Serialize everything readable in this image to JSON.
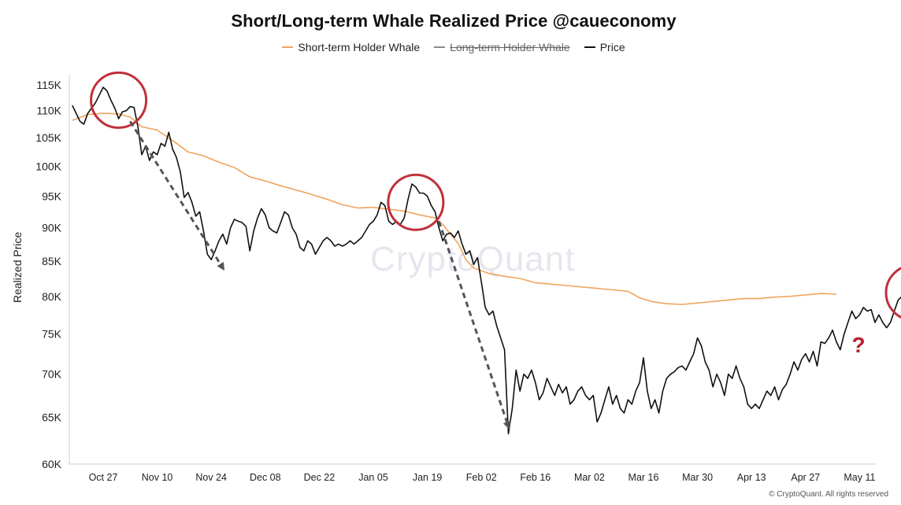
{
  "title": "Short/Long-term Whale Realized Price @caueconomy",
  "legend": [
    {
      "label": "Short-term Holder Whale",
      "color": "#f0a45c",
      "struck": false
    },
    {
      "label": "Long-term Holder Whale",
      "color": "#8a8a8a",
      "struck": true
    },
    {
      "label": "Price",
      "color": "#111111",
      "struck": false
    }
  ],
  "watermark": "CryptoQuant",
  "footer": "© CryptoQuant. All rights reserved",
  "annotation_mark": "?",
  "colors": {
    "price": "#111111",
    "sth_whale": "#f0a45c",
    "circle": "#c0303a",
    "arrow": "#555555"
  },
  "chart_data": {
    "type": "line",
    "ylabel": "Realized Price",
    "y_scale": "log",
    "ylim": [
      60000,
      117000
    ],
    "y_ticks": [
      {
        "value": 115000,
        "label": "115K"
      },
      {
        "value": 110000,
        "label": "110K"
      },
      {
        "value": 105000,
        "label": "105K"
      },
      {
        "value": 100000,
        "label": "100K"
      },
      {
        "value": 95000,
        "label": "95K"
      },
      {
        "value": 90000,
        "label": "90K"
      },
      {
        "value": 85000,
        "label": "85K"
      },
      {
        "value": 80000,
        "label": "80K"
      },
      {
        "value": 75000,
        "label": "75K"
      },
      {
        "value": 70000,
        "label": "70K"
      },
      {
        "value": 65000,
        "label": "65K"
      },
      {
        "value": 60000,
        "label": "60K"
      }
    ],
    "x_ticks": [
      "Oct 27",
      "Nov 10",
      "Nov 24",
      "Dec 08",
      "Dec 22",
      "Jan 05",
      "Jan 19",
      "Feb 02",
      "Feb 16",
      "Mar 02",
      "Mar 16",
      "Mar 30",
      "Apr 13",
      "Apr 27",
      "May 11"
    ],
    "grid": false,
    "legend_position": "top-center",
    "series": [
      {
        "name": "Short-term Holder Whale",
        "points": [
          [
            -8,
            108200
          ],
          [
            -4,
            109300
          ],
          [
            0,
            109500
          ],
          [
            4,
            109400
          ],
          [
            7,
            108800
          ],
          [
            10,
            107000
          ],
          [
            14,
            106400
          ],
          [
            18,
            104500
          ],
          [
            22,
            102500
          ],
          [
            26,
            101800
          ],
          [
            30,
            100700
          ],
          [
            34,
            99800
          ],
          [
            38,
            98200
          ],
          [
            42,
            97500
          ],
          [
            46,
            96700
          ],
          [
            50,
            96000
          ],
          [
            54,
            95300
          ],
          [
            58,
            94500
          ],
          [
            62,
            93600
          ],
          [
            66,
            93100
          ],
          [
            70,
            93200
          ],
          [
            74,
            92900
          ],
          [
            78,
            92600
          ],
          [
            82,
            92000
          ],
          [
            86,
            91500
          ],
          [
            88,
            90500
          ],
          [
            90,
            89000
          ],
          [
            92,
            87600
          ],
          [
            94,
            85200
          ],
          [
            96,
            84000
          ],
          [
            100,
            83200
          ],
          [
            104,
            82800
          ],
          [
            108,
            82500
          ],
          [
            112,
            81900
          ],
          [
            116,
            81700
          ],
          [
            120,
            81500
          ],
          [
            126,
            81200
          ],
          [
            132,
            80900
          ],
          [
            136,
            80700
          ],
          [
            139,
            79800
          ],
          [
            142,
            79300
          ],
          [
            146,
            79000
          ],
          [
            150,
            78900
          ],
          [
            154,
            79100
          ],
          [
            158,
            79300
          ],
          [
            162,
            79500
          ],
          [
            166,
            79700
          ],
          [
            170,
            79700
          ],
          [
            174,
            79900
          ],
          [
            178,
            80000
          ],
          [
            182,
            80200
          ],
          [
            186,
            80400
          ],
          [
            190,
            80300
          ]
        ]
      },
      {
        "name": "Long-term Holder Whale",
        "hidden": true,
        "points": []
      },
      {
        "name": "Price",
        "points": [
          [
            -8,
            111000
          ],
          [
            -7,
            109500
          ],
          [
            -6,
            108000
          ],
          [
            -5,
            107500
          ],
          [
            -4,
            109500
          ],
          [
            -3,
            110500
          ],
          [
            -2,
            111500
          ],
          [
            -1,
            113000
          ],
          [
            0,
            114500
          ],
          [
            1,
            113800
          ],
          [
            2,
            112000
          ],
          [
            3,
            110500
          ],
          [
            4,
            108500
          ],
          [
            5,
            109800
          ],
          [
            6,
            110000
          ],
          [
            7,
            110800
          ],
          [
            8,
            110600
          ],
          [
            9,
            107000
          ],
          [
            10,
            102000
          ],
          [
            11,
            103500
          ],
          [
            12,
            101000
          ],
          [
            13,
            102500
          ],
          [
            14,
            102000
          ],
          [
            15,
            104000
          ],
          [
            16,
            103500
          ],
          [
            17,
            106000
          ],
          [
            18,
            103000
          ],
          [
            19,
            101500
          ],
          [
            20,
            99000
          ],
          [
            21,
            94800
          ],
          [
            22,
            95600
          ],
          [
            23,
            94000
          ],
          [
            24,
            91800
          ],
          [
            25,
            92500
          ],
          [
            26,
            89500
          ],
          [
            27,
            86000
          ],
          [
            28,
            85200
          ],
          [
            29,
            86500
          ],
          [
            30,
            88000
          ],
          [
            31,
            89000
          ],
          [
            32,
            87500
          ],
          [
            33,
            90000
          ],
          [
            34,
            91300
          ],
          [
            35,
            91000
          ],
          [
            36,
            90800
          ],
          [
            37,
            90200
          ],
          [
            38,
            86500
          ],
          [
            39,
            89500
          ],
          [
            40,
            91500
          ],
          [
            41,
            93000
          ],
          [
            42,
            92000
          ],
          [
            43,
            90000
          ],
          [
            44,
            89500
          ],
          [
            45,
            89200
          ],
          [
            46,
            90800
          ],
          [
            47,
            92500
          ],
          [
            48,
            92000
          ],
          [
            49,
            90000
          ],
          [
            50,
            89000
          ],
          [
            51,
            87000
          ],
          [
            52,
            86500
          ],
          [
            53,
            88000
          ],
          [
            54,
            87500
          ],
          [
            55,
            86000
          ],
          [
            56,
            87000
          ],
          [
            57,
            88000
          ],
          [
            58,
            88500
          ],
          [
            59,
            88000
          ],
          [
            60,
            87200
          ],
          [
            61,
            87500
          ],
          [
            62,
            87200
          ],
          [
            63,
            87500
          ],
          [
            64,
            88000
          ],
          [
            65,
            87500
          ],
          [
            66,
            88000
          ],
          [
            67,
            88500
          ],
          [
            68,
            89500
          ],
          [
            69,
            90500
          ],
          [
            70,
            91000
          ],
          [
            71,
            92000
          ],
          [
            72,
            94000
          ],
          [
            73,
            93500
          ],
          [
            74,
            91000
          ],
          [
            75,
            90500
          ],
          [
            76,
            91000
          ],
          [
            77,
            90500
          ],
          [
            78,
            91500
          ],
          [
            79,
            94500
          ],
          [
            80,
            97000
          ],
          [
            81,
            96500
          ],
          [
            82,
            95500
          ],
          [
            83,
            95500
          ],
          [
            84,
            95000
          ],
          [
            85,
            93500
          ],
          [
            86,
            92500
          ],
          [
            87,
            90000
          ],
          [
            88,
            88000
          ],
          [
            89,
            89000
          ],
          [
            90,
            89200
          ],
          [
            91,
            88500
          ],
          [
            92,
            89500
          ],
          [
            93,
            87500
          ],
          [
            94,
            86000
          ],
          [
            95,
            86500
          ],
          [
            96,
            84500
          ],
          [
            97,
            85500
          ],
          [
            98,
            82000
          ],
          [
            99,
            78500
          ],
          [
            100,
            77500
          ],
          [
            101,
            78000
          ],
          [
            102,
            76000
          ],
          [
            103,
            74500
          ],
          [
            104,
            73000
          ],
          [
            105,
            63200
          ],
          [
            106,
            66000
          ],
          [
            107,
            70500
          ],
          [
            108,
            68000
          ],
          [
            109,
            70000
          ],
          [
            110,
            69500
          ],
          [
            111,
            70500
          ],
          [
            112,
            69000
          ],
          [
            113,
            67000
          ],
          [
            114,
            67800
          ],
          [
            115,
            69500
          ],
          [
            116,
            68500
          ],
          [
            117,
            67500
          ],
          [
            118,
            68800
          ],
          [
            119,
            67800
          ],
          [
            120,
            68500
          ],
          [
            121,
            66500
          ],
          [
            122,
            67000
          ],
          [
            123,
            68000
          ],
          [
            124,
            68500
          ],
          [
            125,
            67500
          ],
          [
            126,
            67000
          ],
          [
            127,
            67500
          ],
          [
            128,
            64500
          ],
          [
            129,
            65500
          ],
          [
            130,
            67000
          ],
          [
            131,
            68500
          ],
          [
            132,
            66500
          ],
          [
            133,
            67500
          ],
          [
            134,
            66000
          ],
          [
            135,
            65500
          ],
          [
            136,
            67000
          ],
          [
            137,
            66500
          ],
          [
            138,
            68000
          ],
          [
            139,
            69000
          ],
          [
            140,
            72000
          ],
          [
            141,
            68000
          ],
          [
            142,
            66000
          ],
          [
            143,
            67000
          ],
          [
            144,
            65500
          ],
          [
            145,
            68000
          ],
          [
            146,
            69500
          ],
          [
            147,
            70000
          ],
          [
            148,
            70300
          ],
          [
            149,
            70800
          ],
          [
            150,
            71000
          ],
          [
            151,
            70500
          ],
          [
            152,
            71500
          ],
          [
            153,
            72500
          ],
          [
            154,
            74500
          ],
          [
            155,
            73500
          ],
          [
            156,
            71500
          ],
          [
            157,
            70500
          ],
          [
            158,
            68500
          ],
          [
            159,
            70000
          ],
          [
            160,
            69000
          ],
          [
            161,
            67500
          ],
          [
            162,
            70000
          ],
          [
            163,
            69500
          ],
          [
            164,
            71000
          ],
          [
            165,
            69500
          ],
          [
            166,
            68500
          ],
          [
            167,
            66500
          ],
          [
            168,
            66000
          ],
          [
            169,
            66500
          ],
          [
            170,
            66000
          ],
          [
            171,
            67000
          ],
          [
            172,
            68000
          ],
          [
            173,
            67500
          ],
          [
            174,
            68500
          ],
          [
            175,
            67000
          ],
          [
            176,
            68200
          ],
          [
            177,
            68800
          ],
          [
            178,
            70000
          ],
          [
            179,
            71500
          ],
          [
            180,
            70500
          ],
          [
            181,
            71800
          ],
          [
            182,
            72500
          ],
          [
            183,
            71500
          ],
          [
            184,
            72800
          ],
          [
            185,
            71000
          ],
          [
            186,
            74000
          ],
          [
            187,
            73800
          ],
          [
            188,
            74500
          ],
          [
            189,
            75500
          ],
          [
            190,
            74000
          ],
          [
            191,
            73000
          ],
          [
            192,
            75000
          ],
          [
            193,
            76500
          ],
          [
            194,
            78000
          ],
          [
            195,
            77000
          ],
          [
            196,
            77500
          ],
          [
            197,
            78500
          ],
          [
            198,
            78000
          ],
          [
            199,
            78200
          ],
          [
            200,
            76500
          ],
          [
            201,
            77500
          ],
          [
            202,
            76500
          ],
          [
            203,
            75800
          ],
          [
            204,
            76500
          ],
          [
            205,
            78000
          ],
          [
            206,
            79500
          ],
          [
            207,
            80000
          ],
          [
            208,
            81000
          ],
          [
            209,
            81500
          ],
          [
            210,
            80500
          ],
          [
            211,
            80600
          ],
          [
            212,
            81800
          ],
          [
            213,
            82300
          ],
          [
            214,
            81500
          ],
          [
            215,
            79800
          ]
        ]
      }
    ],
    "annotations": [
      {
        "type": "circle",
        "at": [
          4,
          112000
        ]
      },
      {
        "type": "circle",
        "at": [
          81,
          94000
        ]
      },
      {
        "type": "circle",
        "at": [
          210,
          80500
        ]
      },
      {
        "type": "arrow",
        "from": [
          7,
          108000
        ],
        "to": [
          31,
          84000
        ]
      },
      {
        "type": "arrow",
        "from": [
          87,
          91000
        ],
        "to": [
          105,
          64000
        ]
      }
    ]
  }
}
